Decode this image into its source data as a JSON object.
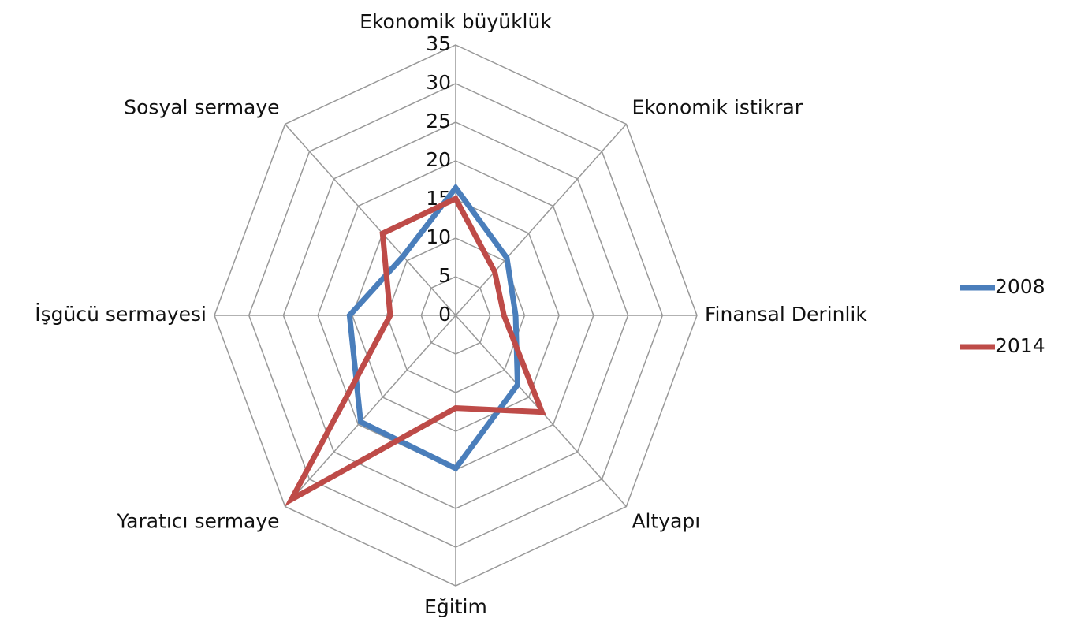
{
  "chart_data": {
    "type": "radar",
    "categories": [
      "Ekonomik büyüklük",
      "Ekonomik istikrar",
      "Finansal Derinlik",
      "Altyapı",
      "Eğitim",
      "Yaratıcı sermaye",
      "İşgücü sermayesi",
      "Sosyal sermaye"
    ],
    "series": [
      {
        "name": "2008",
        "color": "#4a7ebb",
        "values": [
          16.5,
          10.5,
          8.7,
          12.7,
          19.8,
          19.5,
          15.4,
          10.8
        ]
      },
      {
        "name": "2014",
        "color": "#be4b48",
        "values": [
          15.1,
          8,
          7,
          17.7,
          12,
          33.7,
          9.5,
          15
        ]
      }
    ],
    "ylim": [
      0,
      35
    ],
    "yticks": [
      0,
      5,
      10,
      15,
      20,
      25,
      30,
      35
    ],
    "grid": true,
    "legend": "right"
  }
}
